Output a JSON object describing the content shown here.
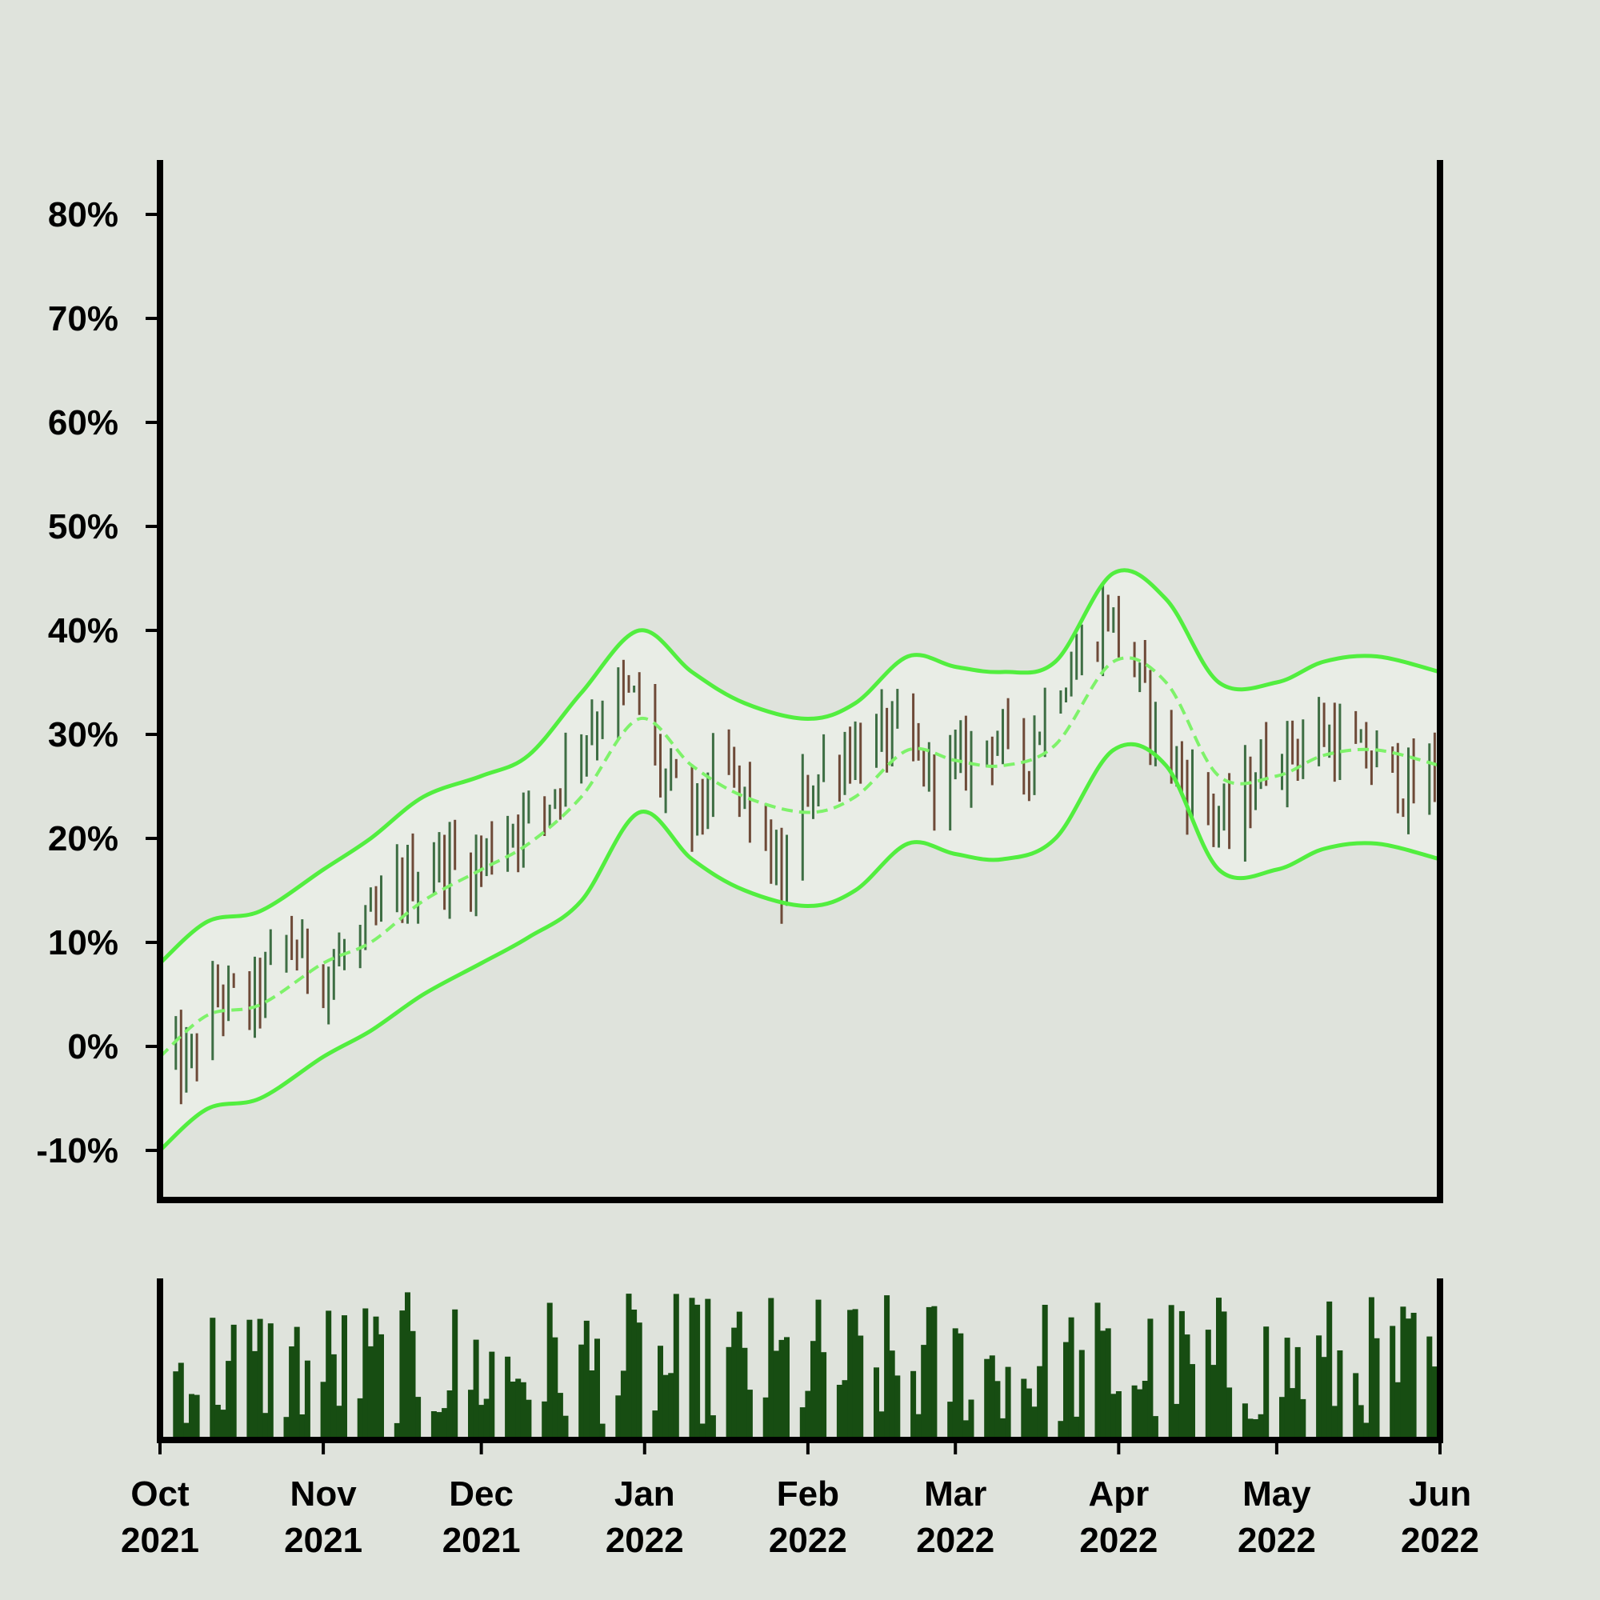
{
  "colors": {
    "background": "#dfe3dc",
    "band_line": "#52ee3f",
    "band_fill": "#e9ede6",
    "mid_line": "#7ef26a",
    "up_bar": "#3e6e44",
    "down_bar": "#6e4a38",
    "volume": "#174d12",
    "axis": "#000000"
  },
  "chart_data": [
    {
      "type": "ohlc",
      "panel": "price",
      "y_unit": "%",
      "ylim": [
        -12,
        85
      ],
      "yticks": [
        -10,
        0,
        10,
        20,
        30,
        40,
        50,
        60,
        70,
        80
      ],
      "ytick_labels": [
        "-10%",
        "0%",
        "10%",
        "20%",
        "30%",
        "40%",
        "50%",
        "60%",
        "70%",
        "80%"
      ],
      "xlim": [
        "2021-10-01",
        "2022-06-01"
      ],
      "grid": false,
      "overlays": [
        "Bollinger bands (upper, middle dashed, lower)"
      ],
      "price_path": [
        [
          "2021-10-01",
          -1
        ],
        [
          "2021-10-06",
          -2
        ],
        [
          "2021-10-12",
          5
        ],
        [
          "2021-10-18",
          4
        ],
        [
          "2021-10-25",
          10
        ],
        [
          "2021-11-01",
          7
        ],
        [
          "2021-11-08",
          10
        ],
        [
          "2021-11-15",
          15
        ],
        [
          "2021-11-22",
          18
        ],
        [
          "2021-11-29",
          17
        ],
        [
          "2021-12-06",
          21
        ],
        [
          "2021-12-13",
          23
        ],
        [
          "2021-12-20",
          30
        ],
        [
          "2021-12-27",
          34
        ],
        [
          "2021-12-31",
          33
        ],
        [
          "2022-01-04",
          26
        ],
        [
          "2022-01-10",
          22
        ],
        [
          "2022-01-16",
          27
        ],
        [
          "2022-01-22",
          22
        ],
        [
          "2022-01-27",
          15
        ],
        [
          "2022-01-31",
          24
        ],
        [
          "2022-02-06",
          28
        ],
        [
          "2022-02-12",
          29
        ],
        [
          "2022-02-18",
          30
        ],
        [
          "2022-02-24",
          26
        ],
        [
          "2022-03-02",
          27
        ],
        [
          "2022-03-08",
          30
        ],
        [
          "2022-03-14",
          27
        ],
        [
          "2022-03-20",
          35
        ],
        [
          "2022-03-26",
          38
        ],
        [
          "2022-03-30",
          42
        ],
        [
          "2022-04-04",
          36
        ],
        [
          "2022-04-10",
          28
        ],
        [
          "2022-04-16",
          24
        ],
        [
          "2022-04-22",
          21
        ],
        [
          "2022-04-28",
          27
        ],
        [
          "2022-05-04",
          29
        ],
        [
          "2022-05-10",
          30
        ],
        [
          "2022-05-16",
          28
        ],
        [
          "2022-05-22",
          27
        ],
        [
          "2022-05-27",
          24
        ],
        [
          "2022-06-01",
          28
        ]
      ],
      "bollinger": {
        "dates": [
          "2021-10-01",
          "2021-10-10",
          "2021-10-20",
          "2021-11-01",
          "2021-11-10",
          "2021-11-20",
          "2021-12-01",
          "2021-12-10",
          "2021-12-20",
          "2021-12-31",
          "2022-01-10",
          "2022-01-20",
          "2022-02-01",
          "2022-02-10",
          "2022-02-20",
          "2022-03-01",
          "2022-03-10",
          "2022-03-20",
          "2022-03-31",
          "2022-04-10",
          "2022-04-20",
          "2022-05-01",
          "2022-05-10",
          "2022-05-20",
          "2022-06-01"
        ],
        "upper": [
          8,
          12,
          13,
          17,
          20,
          24,
          26,
          28,
          34,
          40,
          36,
          33,
          31.5,
          33,
          37.5,
          36.5,
          36,
          37,
          45.5,
          43,
          35,
          35,
          37,
          37.5,
          36
        ],
        "middle": [
          -1,
          3,
          4,
          8,
          10,
          14,
          17,
          19.5,
          24,
          31.5,
          27,
          24,
          22.5,
          24,
          28.5,
          27.5,
          27,
          29,
          37,
          35,
          26,
          26,
          28,
          28.5,
          27
        ],
        "lower": [
          -10,
          -6,
          -5,
          -1,
          1.5,
          5,
          8,
          10.5,
          14,
          22.5,
          18,
          15,
          13.5,
          15,
          19.5,
          18.5,
          18,
          20,
          28.5,
          27,
          17,
          17,
          19,
          19.5,
          18
        ]
      }
    },
    {
      "type": "bar",
      "panel": "volume",
      "xlim": [
        "2021-10-01",
        "2022-06-01"
      ],
      "grid": false,
      "yticks": []
    }
  ],
  "x_axis": {
    "ticks": [
      {
        "date": "2021-10-01",
        "month": "Oct",
        "year": "2021"
      },
      {
        "date": "2021-11-01",
        "month": "Nov",
        "year": "2021"
      },
      {
        "date": "2021-12-01",
        "month": "Dec",
        "year": "2021"
      },
      {
        "date": "2022-01-01",
        "month": "Jan",
        "year": "2022"
      },
      {
        "date": "2022-02-01",
        "month": "Feb",
        "year": "2022"
      },
      {
        "date": "2022-03-01",
        "month": "Mar",
        "year": "2022"
      },
      {
        "date": "2022-04-01",
        "month": "Apr",
        "year": "2022"
      },
      {
        "date": "2022-05-01",
        "month": "May",
        "year": "2022"
      },
      {
        "date": "2022-06-01",
        "month": "Jun",
        "year": "2022"
      }
    ]
  }
}
